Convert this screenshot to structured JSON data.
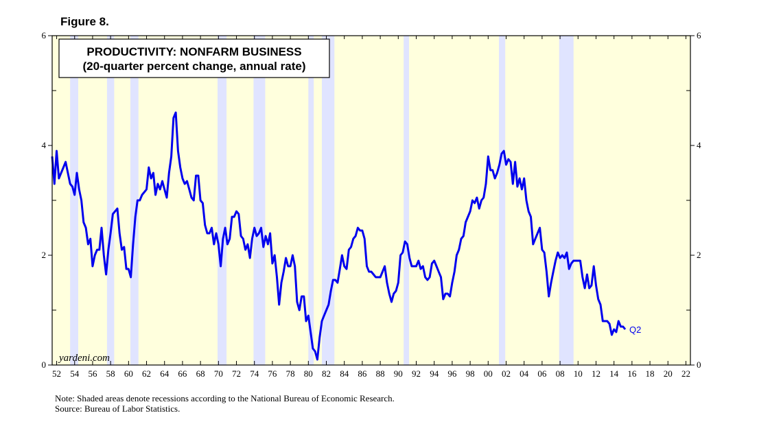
{
  "figure_label": "Figure 8.",
  "chart_data": {
    "type": "line",
    "title": "PRODUCTIVITY: NONFARM BUSINESS",
    "subtitle": "(20-quarter percent change, annual rate)",
    "xlabel": "",
    "ylabel": "",
    "xlim": [
      1951.5,
      2022.5
    ],
    "ylim": [
      0,
      6
    ],
    "y_ticks": [
      0,
      2,
      4,
      6
    ],
    "x_ticks": [
      1952,
      1954,
      1956,
      1958,
      1960,
      1962,
      1964,
      1966,
      1968,
      1970,
      1972,
      1974,
      1976,
      1978,
      1980,
      1982,
      1984,
      1986,
      1988,
      1990,
      1992,
      1994,
      1996,
      1998,
      2000,
      2002,
      2004,
      2006,
      2008,
      2010,
      2012,
      2014,
      2016,
      2018,
      2020,
      2022
    ],
    "x_tick_labels": [
      "52",
      "54",
      "56",
      "58",
      "60",
      "62",
      "64",
      "66",
      "68",
      "70",
      "72",
      "74",
      "76",
      "78",
      "80",
      "82",
      "84",
      "86",
      "88",
      "90",
      "92",
      "94",
      "96",
      "98",
      "00",
      "02",
      "04",
      "06",
      "08",
      "10",
      "12",
      "14",
      "16",
      "18",
      "20",
      "22"
    ],
    "recessions": [
      [
        1953.5,
        1954.4
      ],
      [
        1957.6,
        1958.4
      ],
      [
        1960.2,
        1961.1
      ],
      [
        1969.9,
        1970.9
      ],
      [
        1973.9,
        1975.2
      ],
      [
        1980.0,
        1980.6
      ],
      [
        1981.5,
        1982.9
      ],
      [
        1990.6,
        1991.2
      ],
      [
        2001.2,
        2001.9
      ],
      [
        2007.9,
        2009.5
      ]
    ],
    "series": [
      {
        "name": "Productivity: Nonfarm Business",
        "color": "#0000ee",
        "end_label": "Q2",
        "points": [
          [
            1951.5,
            3.8
          ],
          [
            1951.75,
            3.3
          ],
          [
            1952.0,
            3.9
          ],
          [
            1952.25,
            3.4
          ],
          [
            1952.5,
            3.5
          ],
          [
            1952.75,
            3.6
          ],
          [
            1953.0,
            3.7
          ],
          [
            1953.25,
            3.5
          ],
          [
            1953.5,
            3.3
          ],
          [
            1953.75,
            3.25
          ],
          [
            1954.0,
            3.1
          ],
          [
            1954.25,
            3.5
          ],
          [
            1954.5,
            3.2
          ],
          [
            1954.75,
            3.0
          ],
          [
            1955.0,
            2.6
          ],
          [
            1955.25,
            2.5
          ],
          [
            1955.5,
            2.2
          ],
          [
            1955.75,
            2.3
          ],
          [
            1956.0,
            1.8
          ],
          [
            1956.25,
            2.0
          ],
          [
            1956.5,
            2.1
          ],
          [
            1956.75,
            2.1
          ],
          [
            1957.0,
            2.5
          ],
          [
            1957.25,
            2.0
          ],
          [
            1957.5,
            1.65
          ],
          [
            1957.75,
            2.1
          ],
          [
            1958.0,
            2.4
          ],
          [
            1958.25,
            2.75
          ],
          [
            1958.5,
            2.8
          ],
          [
            1958.75,
            2.85
          ],
          [
            1959.0,
            2.4
          ],
          [
            1959.25,
            2.1
          ],
          [
            1959.5,
            2.15
          ],
          [
            1959.75,
            1.75
          ],
          [
            1960.0,
            1.75
          ],
          [
            1960.25,
            1.6
          ],
          [
            1960.5,
            2.2
          ],
          [
            1960.75,
            2.7
          ],
          [
            1961.0,
            3.0
          ],
          [
            1961.25,
            3.0
          ],
          [
            1961.5,
            3.1
          ],
          [
            1961.75,
            3.15
          ],
          [
            1962.0,
            3.2
          ],
          [
            1962.25,
            3.6
          ],
          [
            1962.5,
            3.4
          ],
          [
            1962.75,
            3.5
          ],
          [
            1963.0,
            3.1
          ],
          [
            1963.25,
            3.3
          ],
          [
            1963.5,
            3.2
          ],
          [
            1963.75,
            3.35
          ],
          [
            1964.0,
            3.2
          ],
          [
            1964.25,
            3.05
          ],
          [
            1964.5,
            3.5
          ],
          [
            1964.75,
            3.8
          ],
          [
            1965.0,
            4.5
          ],
          [
            1965.25,
            4.6
          ],
          [
            1965.5,
            3.9
          ],
          [
            1965.75,
            3.6
          ],
          [
            1966.0,
            3.4
          ],
          [
            1966.25,
            3.3
          ],
          [
            1966.5,
            3.35
          ],
          [
            1966.75,
            3.2
          ],
          [
            1967.0,
            3.05
          ],
          [
            1967.25,
            3.0
          ],
          [
            1967.5,
            3.45
          ],
          [
            1967.75,
            3.45
          ],
          [
            1968.0,
            3.0
          ],
          [
            1968.25,
            2.95
          ],
          [
            1968.5,
            2.55
          ],
          [
            1968.75,
            2.4
          ],
          [
            1969.0,
            2.4
          ],
          [
            1969.25,
            2.5
          ],
          [
            1969.5,
            2.2
          ],
          [
            1969.75,
            2.4
          ],
          [
            1970.0,
            2.2
          ],
          [
            1970.25,
            1.8
          ],
          [
            1970.5,
            2.3
          ],
          [
            1970.75,
            2.5
          ],
          [
            1971.0,
            2.2
          ],
          [
            1971.25,
            2.3
          ],
          [
            1971.5,
            2.7
          ],
          [
            1971.75,
            2.7
          ],
          [
            1972.0,
            2.8
          ],
          [
            1972.25,
            2.75
          ],
          [
            1972.5,
            2.35
          ],
          [
            1972.75,
            2.3
          ],
          [
            1973.0,
            2.1
          ],
          [
            1973.25,
            2.2
          ],
          [
            1973.5,
            1.95
          ],
          [
            1973.75,
            2.3
          ],
          [
            1974.0,
            2.5
          ],
          [
            1974.25,
            2.35
          ],
          [
            1974.5,
            2.4
          ],
          [
            1974.75,
            2.5
          ],
          [
            1975.0,
            2.15
          ],
          [
            1975.25,
            2.35
          ],
          [
            1975.5,
            2.2
          ],
          [
            1975.75,
            2.4
          ],
          [
            1976.0,
            1.85
          ],
          [
            1976.25,
            2.0
          ],
          [
            1976.5,
            1.6
          ],
          [
            1976.75,
            1.1
          ],
          [
            1977.0,
            1.5
          ],
          [
            1977.25,
            1.7
          ],
          [
            1977.5,
            1.95
          ],
          [
            1977.75,
            1.8
          ],
          [
            1978.0,
            1.8
          ],
          [
            1978.25,
            2.0
          ],
          [
            1978.5,
            1.8
          ],
          [
            1978.75,
            1.15
          ],
          [
            1979.0,
            1.0
          ],
          [
            1979.25,
            1.25
          ],
          [
            1979.5,
            1.25
          ],
          [
            1979.75,
            0.8
          ],
          [
            1980.0,
            0.9
          ],
          [
            1980.25,
            0.6
          ],
          [
            1980.5,
            0.3
          ],
          [
            1980.75,
            0.25
          ],
          [
            1981.0,
            0.1
          ],
          [
            1981.25,
            0.5
          ],
          [
            1981.5,
            0.8
          ],
          [
            1981.75,
            0.9
          ],
          [
            1982.0,
            1.0
          ],
          [
            1982.25,
            1.1
          ],
          [
            1982.5,
            1.35
          ],
          [
            1982.75,
            1.55
          ],
          [
            1983.0,
            1.55
          ],
          [
            1983.25,
            1.5
          ],
          [
            1983.5,
            1.75
          ],
          [
            1983.75,
            2.0
          ],
          [
            1984.0,
            1.8
          ],
          [
            1984.25,
            1.75
          ],
          [
            1984.5,
            2.1
          ],
          [
            1984.75,
            2.15
          ],
          [
            1985.0,
            2.3
          ],
          [
            1985.25,
            2.35
          ],
          [
            1985.5,
            2.5
          ],
          [
            1985.75,
            2.45
          ],
          [
            1986.0,
            2.45
          ],
          [
            1986.25,
            2.3
          ],
          [
            1986.5,
            1.8
          ],
          [
            1986.75,
            1.7
          ],
          [
            1987.0,
            1.7
          ],
          [
            1987.25,
            1.65
          ],
          [
            1987.5,
            1.6
          ],
          [
            1987.75,
            1.6
          ],
          [
            1988.0,
            1.6
          ],
          [
            1988.25,
            1.7
          ],
          [
            1988.5,
            1.8
          ],
          [
            1988.75,
            1.5
          ],
          [
            1989.0,
            1.3
          ],
          [
            1989.25,
            1.15
          ],
          [
            1989.5,
            1.3
          ],
          [
            1989.75,
            1.35
          ],
          [
            1990.0,
            1.5
          ],
          [
            1990.25,
            2.0
          ],
          [
            1990.5,
            2.05
          ],
          [
            1990.75,
            2.25
          ],
          [
            1991.0,
            2.2
          ],
          [
            1991.25,
            1.95
          ],
          [
            1991.5,
            1.8
          ],
          [
            1991.75,
            1.8
          ],
          [
            1992.0,
            1.8
          ],
          [
            1992.25,
            1.9
          ],
          [
            1992.5,
            1.75
          ],
          [
            1992.75,
            1.8
          ],
          [
            1993.0,
            1.6
          ],
          [
            1993.25,
            1.55
          ],
          [
            1993.5,
            1.6
          ],
          [
            1993.75,
            1.85
          ],
          [
            1994.0,
            1.9
          ],
          [
            1994.25,
            1.8
          ],
          [
            1994.5,
            1.7
          ],
          [
            1994.75,
            1.6
          ],
          [
            1995.0,
            1.2
          ],
          [
            1995.25,
            1.3
          ],
          [
            1995.5,
            1.3
          ],
          [
            1995.75,
            1.25
          ],
          [
            1996.0,
            1.5
          ],
          [
            1996.25,
            1.7
          ],
          [
            1996.5,
            2.0
          ],
          [
            1996.75,
            2.1
          ],
          [
            1997.0,
            2.3
          ],
          [
            1997.25,
            2.35
          ],
          [
            1997.5,
            2.6
          ],
          [
            1997.75,
            2.7
          ],
          [
            1998.0,
            2.8
          ],
          [
            1998.25,
            3.0
          ],
          [
            1998.5,
            2.95
          ],
          [
            1998.75,
            3.05
          ],
          [
            1999.0,
            2.85
          ],
          [
            1999.25,
            3.0
          ],
          [
            1999.5,
            3.05
          ],
          [
            1999.75,
            3.3
          ],
          [
            2000.0,
            3.8
          ],
          [
            2000.25,
            3.55
          ],
          [
            2000.5,
            3.55
          ],
          [
            2000.75,
            3.4
          ],
          [
            2001.0,
            3.5
          ],
          [
            2001.25,
            3.65
          ],
          [
            2001.5,
            3.85
          ],
          [
            2001.75,
            3.9
          ],
          [
            2002.0,
            3.65
          ],
          [
            2002.25,
            3.75
          ],
          [
            2002.5,
            3.7
          ],
          [
            2002.75,
            3.3
          ],
          [
            2003.0,
            3.7
          ],
          [
            2003.25,
            3.25
          ],
          [
            2003.5,
            3.4
          ],
          [
            2003.75,
            3.2
          ],
          [
            2004.0,
            3.4
          ],
          [
            2004.25,
            3.0
          ],
          [
            2004.5,
            2.8
          ],
          [
            2004.75,
            2.7
          ],
          [
            2005.0,
            2.2
          ],
          [
            2005.25,
            2.3
          ],
          [
            2005.5,
            2.4
          ],
          [
            2005.75,
            2.5
          ],
          [
            2006.0,
            2.1
          ],
          [
            2006.25,
            2.05
          ],
          [
            2006.5,
            1.7
          ],
          [
            2006.75,
            1.25
          ],
          [
            2007.0,
            1.5
          ],
          [
            2007.25,
            1.7
          ],
          [
            2007.5,
            1.9
          ],
          [
            2007.75,
            2.05
          ],
          [
            2008.0,
            1.95
          ],
          [
            2008.25,
            2.0
          ],
          [
            2008.5,
            1.95
          ],
          [
            2008.75,
            2.05
          ],
          [
            2009.0,
            1.75
          ],
          [
            2009.25,
            1.85
          ],
          [
            2009.5,
            1.9
          ],
          [
            2009.75,
            1.9
          ],
          [
            2010.0,
            1.9
          ],
          [
            2010.25,
            1.9
          ],
          [
            2010.5,
            1.6
          ],
          [
            2010.75,
            1.4
          ],
          [
            2011.0,
            1.65
          ],
          [
            2011.25,
            1.4
          ],
          [
            2011.5,
            1.45
          ],
          [
            2011.75,
            1.8
          ],
          [
            2012.0,
            1.45
          ],
          [
            2012.25,
            1.2
          ],
          [
            2012.5,
            1.1
          ],
          [
            2012.75,
            0.8
          ],
          [
            2013.0,
            0.8
          ],
          [
            2013.25,
            0.8
          ],
          [
            2013.5,
            0.75
          ],
          [
            2013.75,
            0.55
          ],
          [
            2014.0,
            0.65
          ],
          [
            2014.25,
            0.6
          ],
          [
            2014.5,
            0.8
          ],
          [
            2014.75,
            0.7
          ],
          [
            2015.0,
            0.7
          ],
          [
            2015.25,
            0.65
          ]
        ]
      }
    ],
    "watermark": "yardeni.com",
    "plot_background": "#ffffdd",
    "recession_color": "#e0e4ff"
  },
  "notes": {
    "note": "Note: Shaded areas denote recessions according to the National Bureau of Economic Research.",
    "source": "Source: Bureau of Labor Statistics."
  }
}
